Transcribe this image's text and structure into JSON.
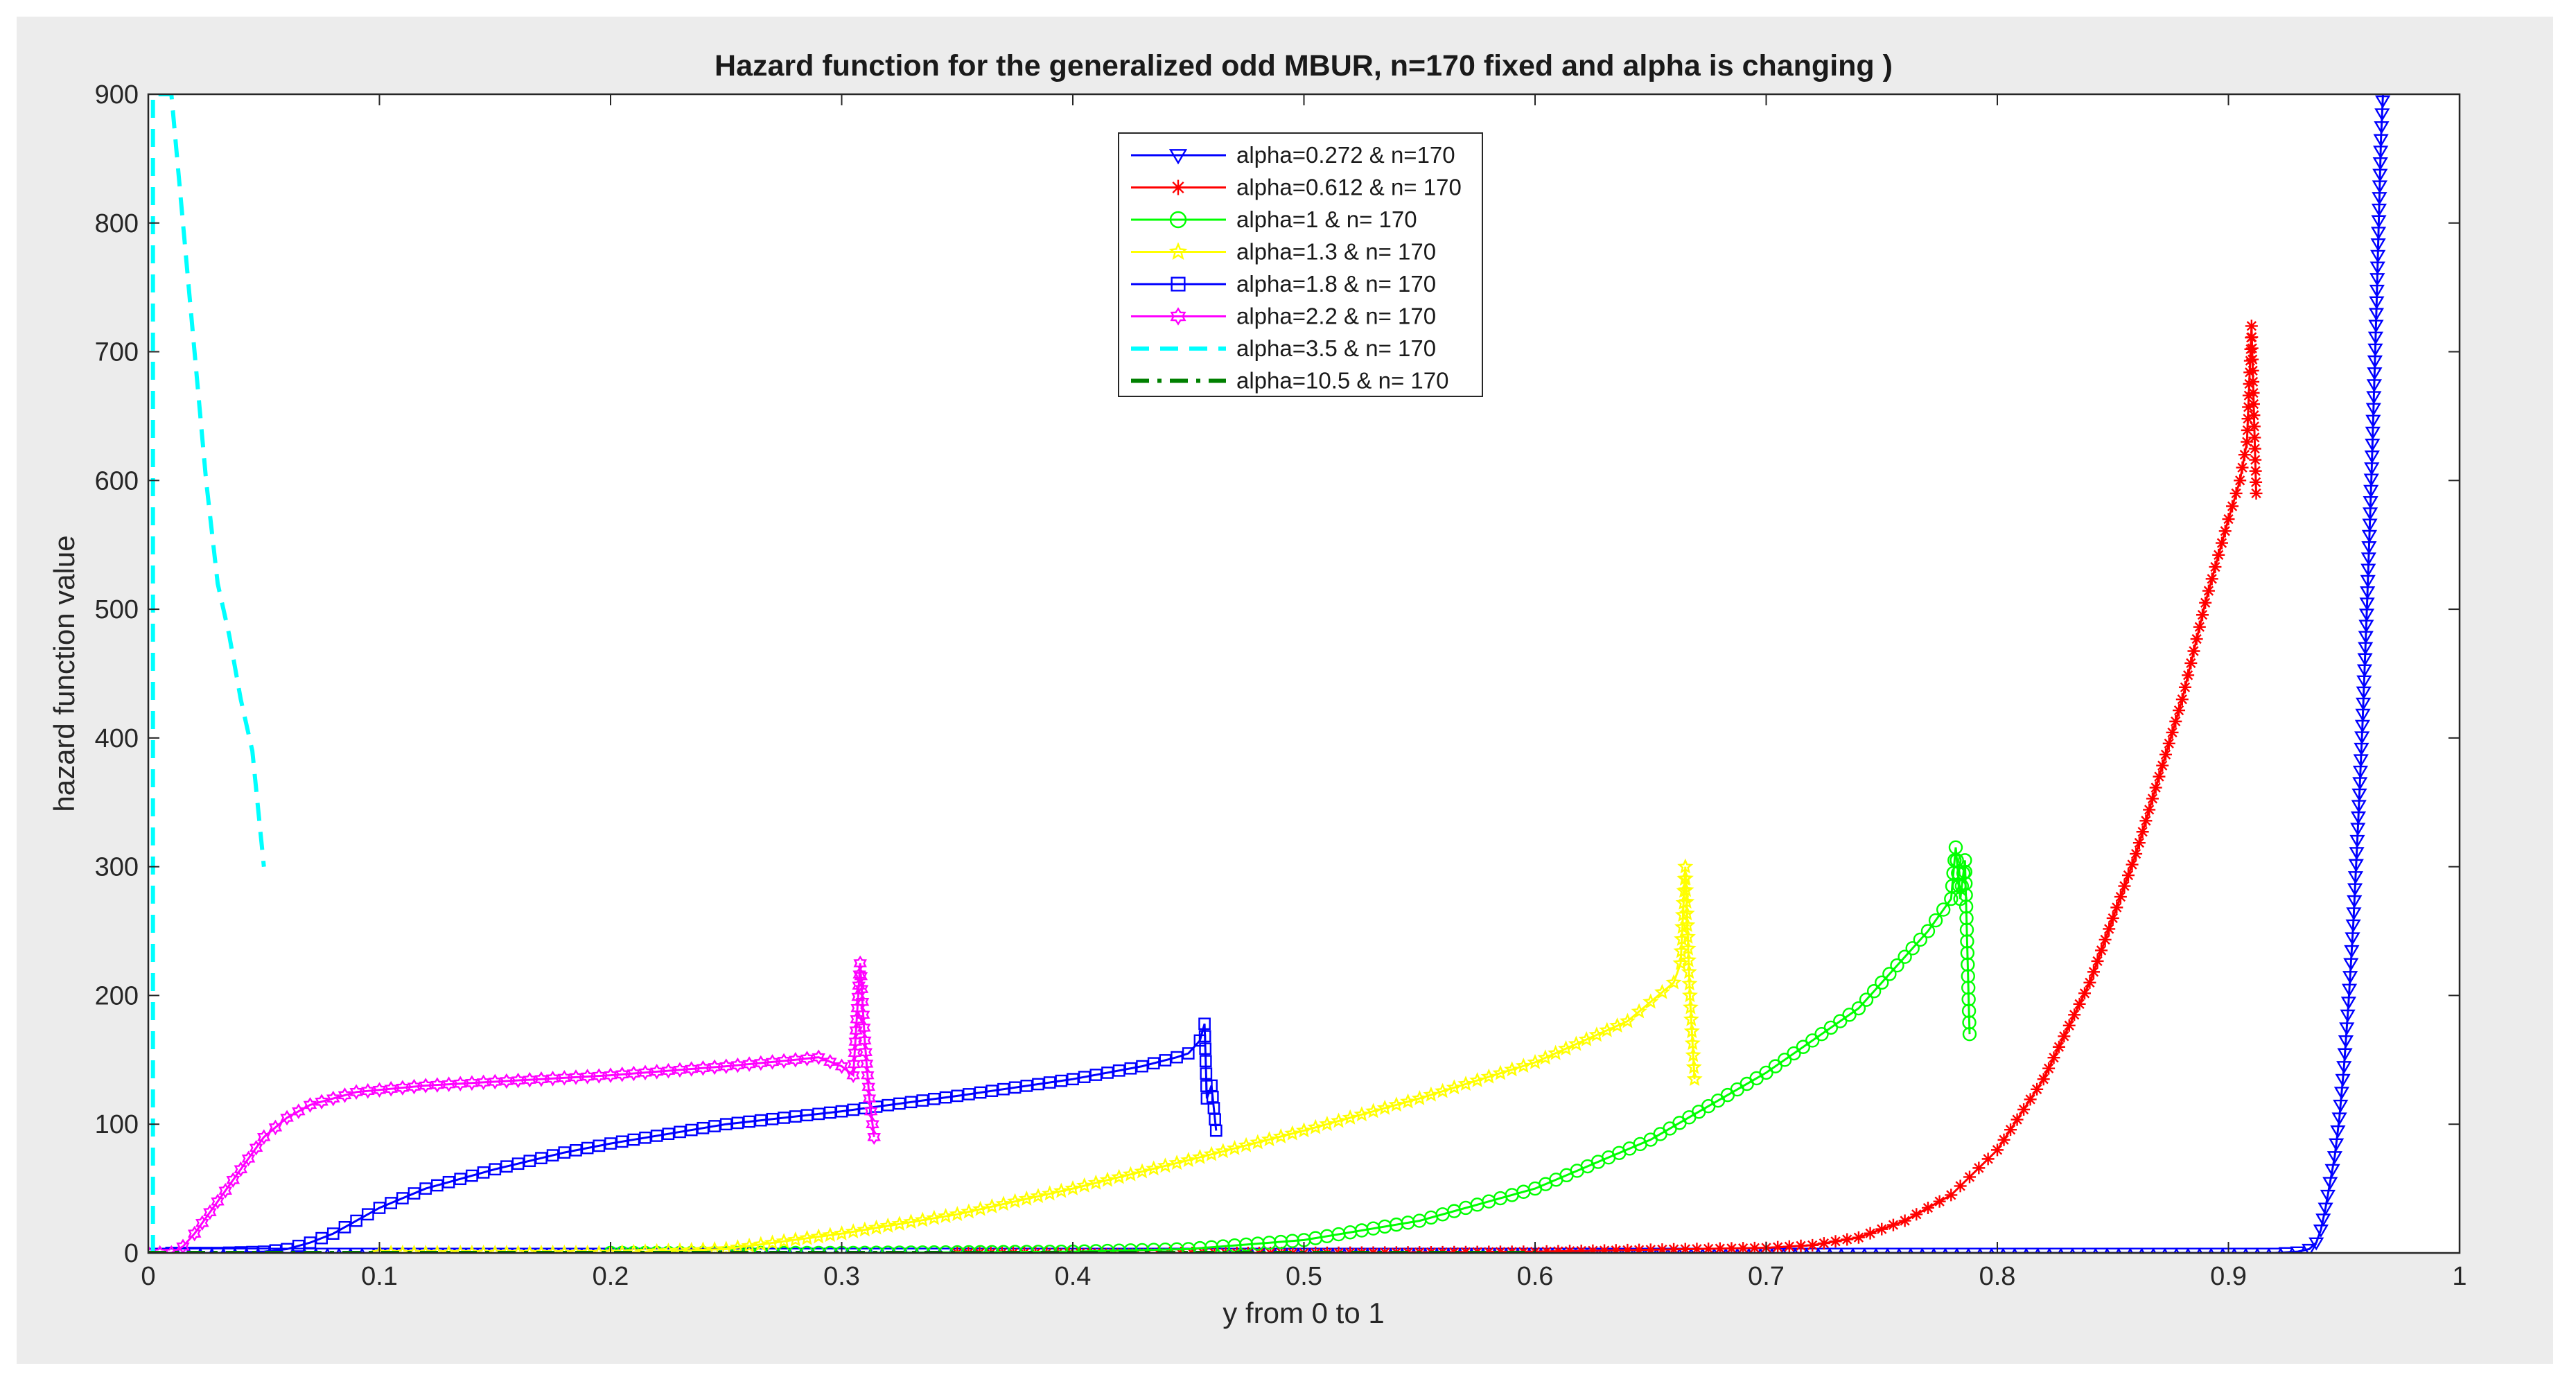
{
  "chart_data": {
    "type": "line",
    "title": "Hazard function for the generalized odd MBUR, n=170 fixed and alpha is changing )",
    "xlabel": "y from 0 to 1",
    "ylabel": "hazard function value",
    "xlim": [
      0,
      1
    ],
    "ylim": [
      0,
      900
    ],
    "x_ticks": [
      "0",
      "0.1",
      "0.2",
      "0.3",
      "0.4",
      "0.5",
      "0.6",
      "0.7",
      "0.8",
      "0.9",
      "1"
    ],
    "y_ticks": [
      "0",
      "100",
      "200",
      "300",
      "400",
      "500",
      "600",
      "700",
      "800",
      "900"
    ],
    "grid": false,
    "legend_position": "top-center",
    "series": [
      {
        "name": "alpha=0.272 & n=170",
        "color": "#0000ff",
        "marker": "triangle-down",
        "line_style": "solid",
        "points": [
          [
            0.0,
            0
          ],
          [
            0.1,
            0
          ],
          [
            0.2,
            0
          ],
          [
            0.3,
            0
          ],
          [
            0.4,
            0
          ],
          [
            0.5,
            0
          ],
          [
            0.6,
            0
          ],
          [
            0.7,
            0
          ],
          [
            0.8,
            0
          ],
          [
            0.88,
            0
          ],
          [
            0.92,
            0
          ],
          [
            0.93,
            1
          ],
          [
            0.935,
            3
          ],
          [
            0.938,
            8
          ],
          [
            0.94,
            18
          ],
          [
            0.942,
            35
          ],
          [
            0.944,
            55
          ],
          [
            0.946,
            75
          ],
          [
            0.948,
            105
          ],
          [
            0.95,
            145
          ],
          [
            0.952,
            195
          ],
          [
            0.954,
            255
          ],
          [
            0.956,
            330
          ],
          [
            0.958,
            410
          ],
          [
            0.96,
            505
          ],
          [
            0.962,
            610
          ],
          [
            0.964,
            730
          ],
          [
            0.966,
            865
          ],
          [
            0.967,
            905
          ]
        ]
      },
      {
        "name": "alpha=0.612 & n= 170",
        "color": "#ff0000",
        "marker": "asterisk",
        "line_style": "solid",
        "points": [
          [
            0.35,
            0
          ],
          [
            0.5,
            0
          ],
          [
            0.6,
            1
          ],
          [
            0.7,
            4
          ],
          [
            0.72,
            6
          ],
          [
            0.74,
            12
          ],
          [
            0.76,
            25
          ],
          [
            0.78,
            45
          ],
          [
            0.8,
            80
          ],
          [
            0.82,
            135
          ],
          [
            0.84,
            210
          ],
          [
            0.86,
            310
          ],
          [
            0.88,
            430
          ],
          [
            0.89,
            505
          ],
          [
            0.9,
            570
          ],
          [
            0.905,
            600
          ],
          [
            0.908,
            630
          ],
          [
            0.91,
            720
          ],
          [
            0.912,
            590
          ]
        ]
      },
      {
        "name": "alpha=1 & n= 170",
        "color": "#00ff00",
        "marker": "circle",
        "line_style": "solid",
        "points": [
          [
            0.2,
            0
          ],
          [
            0.3,
            0
          ],
          [
            0.4,
            1
          ],
          [
            0.45,
            3
          ],
          [
            0.5,
            10
          ],
          [
            0.55,
            25
          ],
          [
            0.6,
            50
          ],
          [
            0.65,
            88
          ],
          [
            0.7,
            140
          ],
          [
            0.74,
            190
          ],
          [
            0.77,
            250
          ],
          [
            0.78,
            275
          ],
          [
            0.782,
            315
          ],
          [
            0.784,
            275
          ],
          [
            0.786,
            305
          ],
          [
            0.788,
            170
          ]
        ]
      },
      {
        "name": "alpha=1.3 & n= 170",
        "color": "#ffff00",
        "marker": "pentagram",
        "line_style": "solid",
        "points": [
          [
            0.1,
            0
          ],
          [
            0.2,
            0
          ],
          [
            0.25,
            3
          ],
          [
            0.3,
            15
          ],
          [
            0.35,
            30
          ],
          [
            0.4,
            50
          ],
          [
            0.45,
            72
          ],
          [
            0.5,
            95
          ],
          [
            0.55,
            120
          ],
          [
            0.6,
            148
          ],
          [
            0.64,
            180
          ],
          [
            0.65,
            195
          ],
          [
            0.66,
            210
          ],
          [
            0.663,
            225
          ],
          [
            0.665,
            300
          ],
          [
            0.667,
            200
          ],
          [
            0.669,
            135
          ]
        ]
      },
      {
        "name": "alpha=1.8 & n= 170",
        "color": "#0000ff",
        "marker": "square",
        "line_style": "solid",
        "points": [
          [
            0.01,
            0
          ],
          [
            0.03,
            0
          ],
          [
            0.05,
            1
          ],
          [
            0.06,
            3
          ],
          [
            0.07,
            8
          ],
          [
            0.08,
            15
          ],
          [
            0.09,
            25
          ],
          [
            0.1,
            35
          ],
          [
            0.12,
            50
          ],
          [
            0.15,
            65
          ],
          [
            0.18,
            78
          ],
          [
            0.2,
            85
          ],
          [
            0.25,
            100
          ],
          [
            0.3,
            110
          ],
          [
            0.35,
            122
          ],
          [
            0.4,
            135
          ],
          [
            0.43,
            145
          ],
          [
            0.445,
            152
          ],
          [
            0.45,
            155
          ],
          [
            0.455,
            165
          ],
          [
            0.457,
            178
          ],
          [
            0.458,
            120
          ],
          [
            0.46,
            130
          ],
          [
            0.462,
            95
          ]
        ]
      },
      {
        "name": "alpha=2.2 & n= 170",
        "color": "#ff00ff",
        "marker": "hexagram",
        "line_style": "solid",
        "points": [
          [
            0.0,
            0
          ],
          [
            0.01,
            0
          ],
          [
            0.015,
            5
          ],
          [
            0.02,
            15
          ],
          [
            0.03,
            40
          ],
          [
            0.04,
            65
          ],
          [
            0.05,
            90
          ],
          [
            0.06,
            105
          ],
          [
            0.07,
            115
          ],
          [
            0.09,
            125
          ],
          [
            0.12,
            130
          ],
          [
            0.15,
            133
          ],
          [
            0.2,
            138
          ],
          [
            0.25,
            145
          ],
          [
            0.28,
            150
          ],
          [
            0.29,
            152
          ],
          [
            0.3,
            145
          ],
          [
            0.305,
            138
          ],
          [
            0.308,
            225
          ],
          [
            0.31,
            165
          ],
          [
            0.312,
            120
          ],
          [
            0.314,
            90
          ]
        ]
      },
      {
        "name": "alpha=3.5 & n= 170",
        "color": "#00ffff",
        "marker": "none",
        "line_style": "dashed",
        "points": [
          [
            0.002,
            0
          ],
          [
            0.002,
            900
          ],
          [
            0.01,
            900
          ],
          [
            0.015,
            800
          ],
          [
            0.02,
            700
          ],
          [
            0.025,
            600
          ],
          [
            0.03,
            520
          ],
          [
            0.035,
            480
          ],
          [
            0.04,
            430
          ],
          [
            0.045,
            390
          ],
          [
            0.05,
            300
          ]
        ]
      },
      {
        "name": "alpha=10.5 & n= 170",
        "color": "#008000",
        "marker": "none",
        "line_style": "dashdot",
        "points": [
          [
            0.0,
            0
          ],
          [
            0.2,
            0
          ],
          [
            0.4,
            0
          ],
          [
            0.5,
            0
          ],
          [
            0.6,
            0
          ]
        ]
      }
    ]
  }
}
